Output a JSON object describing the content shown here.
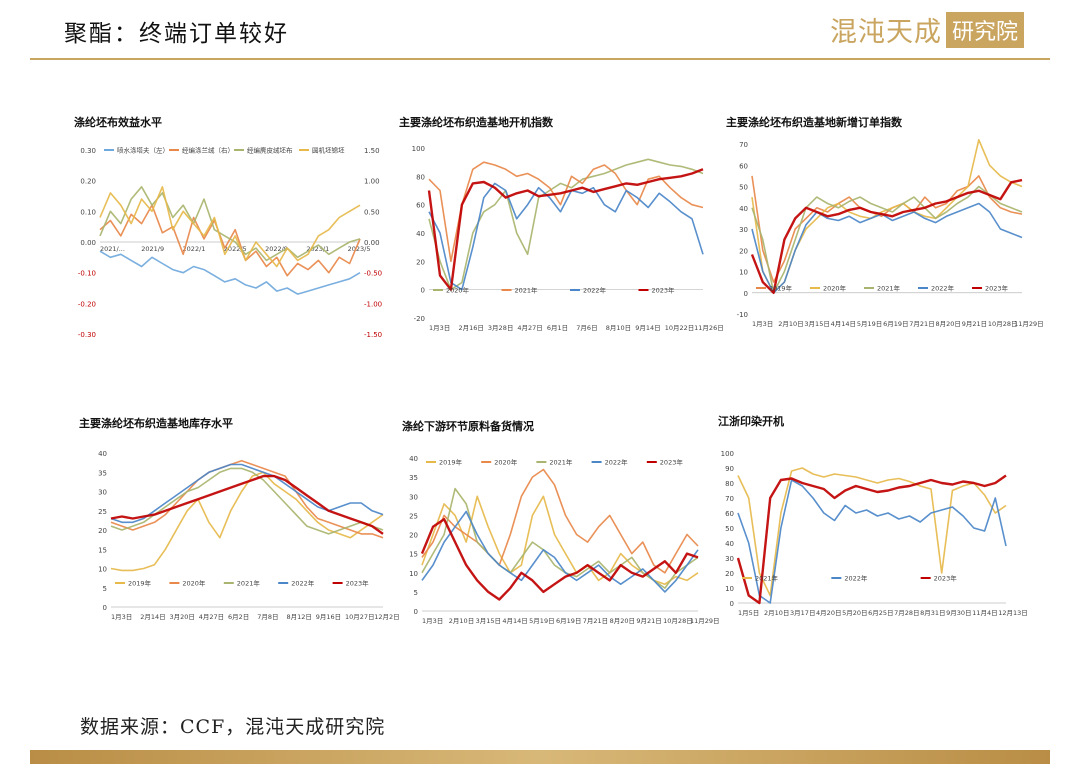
{
  "header": {
    "title": "聚酯：终端订单较好"
  },
  "logo": {
    "main": "混沌天成",
    "box": "研究院"
  },
  "footer": {
    "source": "数据来源：CCF，混沌天成研究院"
  },
  "chart_data": [
    {
      "id": "c1",
      "type": "line",
      "title": "涤纶坯布效益水平",
      "x_ticks": [
        "2021/...",
        "2021/9",
        "2022/1",
        "2022/5",
        "2022/9",
        "2023/1",
        "2023/5"
      ],
      "ylim": [
        -0.3,
        0.3
      ],
      "y_ticks": [
        -0.3,
        -0.2,
        -0.1,
        0.0,
        0.1,
        0.2,
        0.3
      ],
      "y2lim": [
        -1.5,
        1.5
      ],
      "y2_ticks": [
        -1.5,
        -1.0,
        -0.5,
        0.0,
        0.5,
        1.0,
        1.5
      ],
      "series": [
        {
          "name": "喷水涤塔夫（左）",
          "color": "#6fa8dc",
          "axis": "left",
          "values": [
            -0.03,
            -0.05,
            -0.04,
            -0.06,
            -0.08,
            -0.05,
            -0.07,
            -0.09,
            -0.1,
            -0.08,
            -0.09,
            -0.11,
            -0.13,
            -0.12,
            -0.14,
            -0.15,
            -0.13,
            -0.16,
            -0.15,
            -0.17,
            -0.16,
            -0.15,
            -0.14,
            -0.13,
            -0.12,
            -0.1
          ]
        },
        {
          "name": "经编涤兰绒（右）",
          "color": "#e8884a",
          "axis": "right",
          "values": [
            0.2,
            0.35,
            0.1,
            0.45,
            0.3,
            0.6,
            0.15,
            0.25,
            -0.2,
            0.4,
            0.05,
            0.35,
            -0.1,
            0.2,
            -0.3,
            -0.15,
            -0.4,
            -0.25,
            -0.55,
            -0.35,
            -0.45,
            -0.3,
            -0.5,
            -0.25,
            -0.35,
            0.05
          ]
        },
        {
          "name": "经编麂皮绒坯布",
          "color": "#a9b56e",
          "axis": "right",
          "values": [
            0.1,
            0.5,
            0.3,
            0.7,
            0.9,
            0.6,
            0.8,
            0.4,
            0.6,
            0.3,
            0.7,
            0.2,
            0.1,
            0.0,
            -0.2,
            -0.1,
            -0.3,
            -0.2,
            -0.1,
            -0.25,
            -0.15,
            -0.05,
            -0.2,
            -0.1,
            0.0,
            0.05
          ]
        },
        {
          "name": "圆机坯锦坯",
          "color": "#e6b94a",
          "axis": "right",
          "values": [
            0.4,
            0.8,
            0.6,
            0.3,
            0.7,
            0.5,
            0.9,
            0.2,
            0.5,
            0.3,
            0.1,
            0.4,
            -0.2,
            0.1,
            -0.3,
            0.0,
            -0.2,
            -0.4,
            -0.1,
            -0.3,
            -0.2,
            0.1,
            0.2,
            0.4,
            0.5,
            0.6
          ]
        }
      ]
    },
    {
      "id": "c2",
      "type": "line",
      "title": "主要涤纶坯布织造基地开机指数",
      "x_ticks": [
        "1月3日",
        "2月16日",
        "3月28日",
        "4月27日",
        "6月1日",
        "7月6日",
        "8月10日",
        "9月14日",
        "10月22日",
        "11月26日"
      ],
      "ylim": [
        -20,
        100
      ],
      "y_ticks": [
        -20,
        0,
        20,
        40,
        60,
        80,
        100
      ],
      "series": [
        {
          "name": "2020年",
          "color": "#a9b56e",
          "values": [
            50,
            20,
            0,
            5,
            40,
            55,
            60,
            70,
            40,
            25,
            65,
            70,
            75,
            72,
            78,
            80,
            82,
            85,
            88,
            90,
            92,
            90,
            88,
            87,
            85,
            82
          ]
        },
        {
          "name": "2021年",
          "color": "#e8884a",
          "values": [
            78,
            70,
            20,
            60,
            85,
            90,
            88,
            85,
            80,
            82,
            78,
            72,
            60,
            80,
            75,
            85,
            88,
            82,
            70,
            60,
            78,
            80,
            72,
            65,
            60,
            58
          ]
        },
        {
          "name": "2022年",
          "color": "#4a86c8",
          "values": [
            55,
            40,
            5,
            0,
            30,
            65,
            75,
            70,
            50,
            60,
            72,
            65,
            55,
            70,
            68,
            72,
            60,
            55,
            70,
            65,
            58,
            68,
            62,
            55,
            50,
            25
          ]
        },
        {
          "name": "2023年",
          "color": "#c00000",
          "values": [
            70,
            10,
            0,
            60,
            75,
            76,
            72,
            65,
            68,
            70,
            66,
            67,
            68,
            70,
            72,
            69,
            71,
            73,
            75,
            74,
            76,
            78,
            79,
            80,
            82,
            85
          ]
        }
      ]
    },
    {
      "id": "c3",
      "type": "line",
      "title": "主要涤纶坯布织造基地新增订单指数",
      "x_ticks": [
        "1月3日",
        "2月10日",
        "3月15日",
        "4月14日",
        "5月19日",
        "6月19日",
        "7月21日",
        "8月20日",
        "9月21日",
        "10月28日",
        "11月29日"
      ],
      "ylim": [
        -10,
        70
      ],
      "y_ticks": [
        -10,
        0,
        10,
        20,
        30,
        40,
        50,
        60,
        70
      ],
      "series": [
        {
          "name": "2019年",
          "color": "#e8884a",
          "values": [
            55,
            20,
            5,
            15,
            30,
            35,
            40,
            38,
            42,
            45,
            40,
            38,
            36,
            40,
            42,
            38,
            45,
            40,
            42,
            48,
            50,
            55,
            45,
            40,
            38,
            37
          ]
        },
        {
          "name": "2020年",
          "color": "#e6b94a",
          "values": [
            45,
            10,
            0,
            5,
            20,
            30,
            35,
            40,
            42,
            38,
            36,
            35,
            38,
            40,
            42,
            38,
            36,
            35,
            40,
            45,
            50,
            72,
            60,
            55,
            52,
            50
          ]
        },
        {
          "name": "2021年",
          "color": "#a9b56e",
          "values": [
            40,
            25,
            0,
            10,
            25,
            40,
            45,
            42,
            40,
            43,
            45,
            42,
            40,
            38,
            42,
            45,
            40,
            35,
            38,
            42,
            45,
            50,
            46,
            42,
            40,
            38
          ]
        },
        {
          "name": "2022年",
          "color": "#4a86c8",
          "values": [
            30,
            10,
            0,
            5,
            20,
            32,
            38,
            35,
            34,
            36,
            33,
            35,
            37,
            34,
            36,
            38,
            35,
            33,
            36,
            38,
            40,
            42,
            38,
            30,
            28,
            26
          ]
        },
        {
          "name": "2023年",
          "color": "#c00000",
          "values": [
            18,
            5,
            0,
            25,
            35,
            40,
            38,
            36,
            37,
            39,
            40,
            38,
            37,
            36,
            38,
            39,
            40,
            42,
            43,
            45,
            47,
            48,
            46,
            44,
            52,
            53
          ]
        }
      ]
    },
    {
      "id": "c4",
      "type": "line",
      "title": "主要涤纶坯布织造基地库存水平",
      "x_ticks": [
        "1月3日",
        "2月14日",
        "3月20日",
        "4月27日",
        "6月2日",
        "7月8日",
        "8月12日",
        "9月16日",
        "10月27日",
        "12月2日"
      ],
      "ylim": [
        0,
        40
      ],
      "y_ticks": [
        0,
        5,
        10,
        15,
        20,
        25,
        30,
        35,
        40
      ],
      "series": [
        {
          "name": "2019年",
          "color": "#e6b94a",
          "values": [
            10,
            9.5,
            9.5,
            10,
            11,
            15,
            20,
            25,
            28,
            22,
            18,
            25,
            30,
            34,
            35,
            32,
            30,
            28,
            25,
            22,
            20,
            19,
            18,
            20,
            22,
            24
          ]
        },
        {
          "name": "2020年",
          "color": "#e8884a",
          "values": [
            22,
            21,
            20,
            21,
            22,
            24,
            27,
            30,
            33,
            35,
            36,
            37,
            38,
            37,
            36,
            35,
            34,
            30,
            26,
            23,
            22,
            21,
            20,
            19,
            19,
            18
          ]
        },
        {
          "name": "2021年",
          "color": "#a9b56e",
          "values": [
            21,
            20,
            21,
            22,
            24,
            26,
            28,
            30,
            31,
            33,
            35,
            36,
            36,
            35,
            33,
            30,
            27,
            24,
            21,
            20,
            19,
            20,
            21,
            22,
            21,
            20
          ]
        },
        {
          "name": "2022年",
          "color": "#4a86c8",
          "values": [
            23,
            22,
            22,
            23,
            25,
            27,
            29,
            31,
            33,
            35,
            36,
            37,
            37,
            36,
            35,
            34,
            32,
            30,
            28,
            26,
            25,
            26,
            27,
            27,
            25,
            24
          ]
        },
        {
          "name": "2023年",
          "color": "#c00000",
          "values": [
            23,
            23.5,
            23,
            23.5,
            24,
            25,
            26,
            27,
            28,
            29,
            30,
            31,
            32,
            33,
            34,
            34,
            33,
            31,
            29,
            27,
            25,
            24,
            23,
            22,
            21,
            19
          ]
        }
      ]
    },
    {
      "id": "c5",
      "type": "line",
      "title": "涤纶下游环节原料备货情况",
      "x_ticks": [
        "1月3日",
        "2月10日",
        "3月15日",
        "4月14日",
        "5月19日",
        "6月19日",
        "7月21日",
        "8月20日",
        "9月21日",
        "10月28日",
        "11月29日"
      ],
      "ylim": [
        0,
        40
      ],
      "y_ticks": [
        0,
        5,
        10,
        15,
        20,
        25,
        30,
        35,
        40
      ],
      "series": [
        {
          "name": "2019年",
          "color": "#e6b94a",
          "values": [
            12,
            20,
            28,
            25,
            18,
            30,
            22,
            15,
            10,
            12,
            25,
            30,
            20,
            15,
            10,
            12,
            8,
            10,
            15,
            12,
            10,
            8,
            7,
            9,
            8,
            10
          ]
        },
        {
          "name": "2020年",
          "color": "#e8884a",
          "values": [
            14,
            18,
            25,
            22,
            20,
            18,
            15,
            12,
            20,
            30,
            35,
            37,
            33,
            25,
            20,
            18,
            22,
            25,
            20,
            15,
            18,
            12,
            10,
            15,
            20,
            17
          ]
        },
        {
          "name": "2021年",
          "color": "#a9b56e",
          "values": [
            10,
            15,
            20,
            32,
            28,
            18,
            15,
            12,
            10,
            14,
            18,
            16,
            12,
            10,
            9,
            11,
            13,
            10,
            12,
            14,
            10,
            8,
            6,
            10,
            12,
            14
          ]
        },
        {
          "name": "2022年",
          "color": "#4a86c8",
          "values": [
            8,
            12,
            18,
            22,
            26,
            20,
            15,
            12,
            10,
            8,
            12,
            16,
            14,
            10,
            8,
            10,
            12,
            9,
            7,
            9,
            11,
            8,
            5,
            8,
            12,
            16
          ]
        },
        {
          "name": "2023年",
          "color": "#c00000",
          "values": [
            15,
            22,
            24,
            18,
            12,
            8,
            5,
            3,
            6,
            10,
            8,
            5,
            7,
            9,
            10,
            12,
            10,
            8,
            12,
            10,
            9,
            11,
            13,
            10,
            15,
            14
          ]
        }
      ]
    },
    {
      "id": "c6",
      "type": "line",
      "title": "江浙印染开机",
      "x_ticks": [
        "1月5日",
        "2月10日",
        "3月17日",
        "4月20日",
        "5月20日",
        "6月25日",
        "7月28日",
        "8月31日",
        "9月30日",
        "11月4日",
        "12月13日"
      ],
      "ylim": [
        0,
        100
      ],
      "y_ticks": [
        0,
        10,
        20,
        30,
        40,
        50,
        60,
        70,
        80,
        90,
        100
      ],
      "series": [
        {
          "name": "2021年",
          "color": "#e6b94a",
          "values": [
            85,
            70,
            20,
            5,
            60,
            88,
            90,
            86,
            84,
            86,
            85,
            84,
            82,
            80,
            82,
            83,
            81,
            78,
            76,
            20,
            75,
            78,
            80,
            72,
            60,
            65
          ]
        },
        {
          "name": "2022年",
          "color": "#4a86c8",
          "values": [
            60,
            40,
            5,
            0,
            50,
            82,
            78,
            70,
            60,
            55,
            65,
            60,
            62,
            58,
            60,
            56,
            58,
            54,
            60,
            62,
            64,
            58,
            50,
            48,
            70,
            38
          ]
        },
        {
          "name": "2023年",
          "color": "#c00000",
          "values": [
            30,
            5,
            0,
            70,
            82,
            83,
            80,
            78,
            76,
            70,
            75,
            78,
            76,
            74,
            75,
            77,
            78,
            80,
            82,
            80,
            79,
            81,
            80,
            78,
            80,
            85
          ]
        }
      ]
    }
  ]
}
